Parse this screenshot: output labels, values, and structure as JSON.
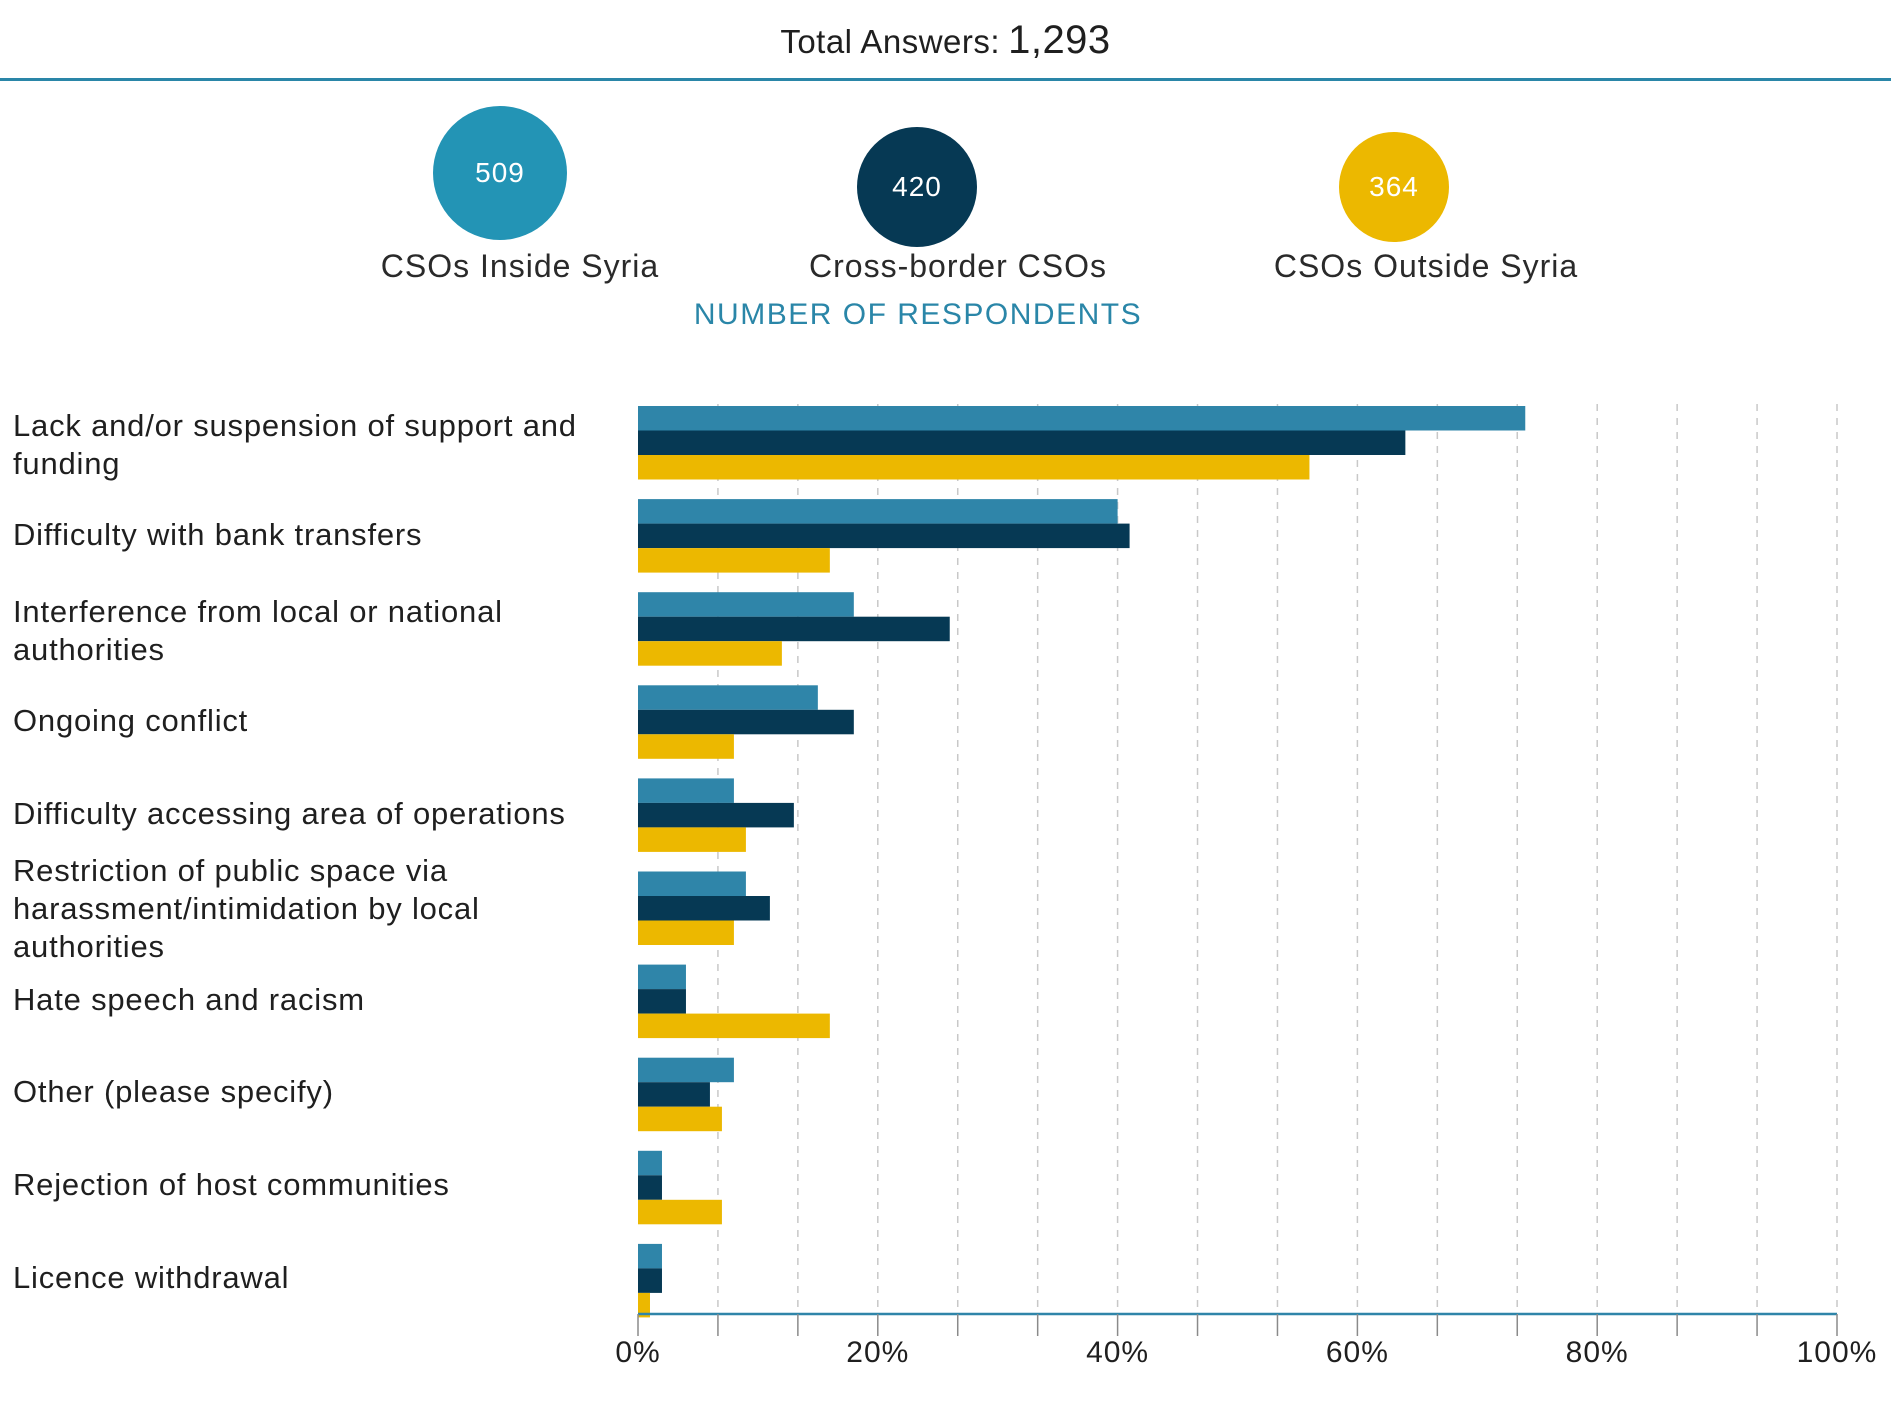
{
  "header": {
    "total_label": "Total Answers:",
    "total_value": "1,293"
  },
  "groups": [
    {
      "count": "509",
      "label": "CSOs Inside Syria",
      "color": "#2394b5"
    },
    {
      "count": "420",
      "label": "Cross-border CSOs",
      "color": "#063954"
    },
    {
      "count": "364",
      "label": "CSOs Outside Syria",
      "color": "#ecb800"
    }
  ],
  "subtitle": "NUMBER OF RESPONDENTS",
  "chart_data": {
    "type": "bar",
    "orientation": "horizontal",
    "categories": [
      "Lack and/or suspension of support and funding",
      "Difficulty with bank transfers",
      "Interference from local or national authorities",
      "Ongoing conflict",
      "Difficulty accessing area of operations",
      "Restriction of public space via harassment/intimidation by local authorities",
      "Hate speech and racism",
      "Other (please specify)",
      "Rejection of host communities",
      "Licence withdrawal"
    ],
    "series": [
      {
        "name": "CSOs Inside Syria",
        "color": "#2f85a9",
        "values": [
          74,
          40,
          18,
          15,
          8,
          9,
          4,
          8,
          2,
          2
        ]
      },
      {
        "name": "Cross-border CSOs",
        "color": "#063954",
        "values": [
          64,
          41,
          26,
          18,
          13,
          11,
          4,
          6,
          2,
          2
        ]
      },
      {
        "name": "CSOs Outside Syria",
        "color": "#ecb800",
        "values": [
          56,
          16,
          12,
          8,
          9,
          8,
          16,
          7,
          7,
          1
        ]
      }
    ],
    "xlim": [
      0,
      100
    ],
    "ticks": [
      "0%",
      "20%",
      "40%",
      "60%",
      "80%",
      "100%"
    ],
    "grid": true
  }
}
